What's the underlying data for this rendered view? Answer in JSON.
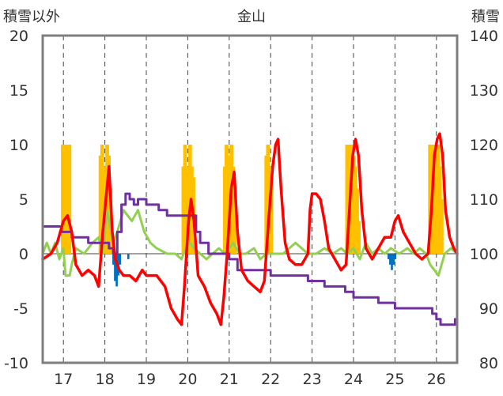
{
  "chart_data": {
    "type": "line",
    "title": "金山",
    "left_axis_label": "積雪以外",
    "right_axis_label": "積雪",
    "left_ylim": [
      -10,
      20
    ],
    "left_ticks": [
      20,
      15,
      10,
      5,
      0,
      -5,
      -10
    ],
    "right_ylim": [
      80,
      140
    ],
    "right_ticks": [
      140,
      130,
      120,
      110,
      100,
      90,
      80
    ],
    "xlim": [
      16.5,
      26.5
    ],
    "x_ticks": [
      17,
      18,
      19,
      20,
      21,
      22,
      23,
      24,
      25,
      26
    ],
    "x_tick_labels": [
      "17",
      "18",
      "19",
      "20",
      "21",
      "22",
      "23",
      "24",
      "25",
      "26"
    ],
    "grid": "vertical dashed at each day",
    "legend": "none",
    "colors": {
      "precipitation": "#ffc000",
      "snowfall": "#0070c0",
      "temperature": "#ff0000",
      "wind": "#92d050",
      "snow_depth": "#7030a0"
    },
    "series": [
      {
        "key": "precipitation",
        "axis": "left",
        "kind": "bar",
        "points": [
          [
            16.96,
            10
          ],
          [
            17.0,
            10
          ],
          [
            17.04,
            10
          ],
          [
            17.08,
            10
          ],
          [
            17.12,
            10
          ],
          [
            17.16,
            10
          ],
          [
            17.87,
            9
          ],
          [
            17.91,
            10
          ],
          [
            17.95,
            10
          ],
          [
            17.99,
            8
          ],
          [
            18.03,
            10
          ],
          [
            18.07,
            10
          ],
          [
            18.11,
            9
          ],
          [
            18.15,
            6
          ],
          [
            19.87,
            8
          ],
          [
            19.91,
            10
          ],
          [
            19.95,
            10
          ],
          [
            19.99,
            8
          ],
          [
            20.03,
            10
          ],
          [
            20.07,
            10
          ],
          [
            20.11,
            8
          ],
          [
            20.15,
            7
          ],
          [
            20.87,
            8
          ],
          [
            20.91,
            10
          ],
          [
            20.95,
            10
          ],
          [
            20.99,
            9
          ],
          [
            21.03,
            10
          ],
          [
            21.07,
            10
          ],
          [
            21.11,
            8
          ],
          [
            21.15,
            4
          ],
          [
            21.87,
            9
          ],
          [
            21.91,
            10
          ],
          [
            21.95,
            10
          ],
          [
            21.99,
            8
          ],
          [
            22.03,
            7
          ],
          [
            23.82,
            10
          ],
          [
            23.86,
            10
          ],
          [
            23.9,
            10
          ],
          [
            23.94,
            10
          ],
          [
            23.98,
            10
          ],
          [
            24.02,
            9
          ],
          [
            24.06,
            8
          ],
          [
            24.1,
            6
          ],
          [
            24.14,
            3
          ],
          [
            25.82,
            10
          ],
          [
            25.86,
            10
          ],
          [
            25.9,
            10
          ],
          [
            25.94,
            10
          ],
          [
            25.98,
            10
          ],
          [
            26.02,
            10
          ],
          [
            26.06,
            10
          ],
          [
            26.1,
            8
          ],
          [
            26.14,
            5
          ]
        ]
      },
      {
        "key": "snowfall",
        "axis": "left",
        "kind": "bar",
        "points": [
          [
            18.2,
            -1
          ],
          [
            18.24,
            -2.5
          ],
          [
            18.28,
            -3
          ],
          [
            18.32,
            -2
          ],
          [
            18.36,
            -1
          ],
          [
            18.56,
            -0.5
          ],
          [
            24.84,
            -0.5
          ],
          [
            24.88,
            -1
          ],
          [
            24.92,
            -1.5
          ],
          [
            24.96,
            -1
          ],
          [
            25.0,
            -0.5
          ]
        ]
      },
      {
        "key": "temperature",
        "axis": "left",
        "kind": "line",
        "points": [
          [
            16.5,
            -0.5
          ],
          [
            16.7,
            0
          ],
          [
            16.85,
            1
          ],
          [
            17.0,
            3
          ],
          [
            17.1,
            3.5
          ],
          [
            17.2,
            2
          ],
          [
            17.3,
            -1
          ],
          [
            17.45,
            -2
          ],
          [
            17.6,
            -1.5
          ],
          [
            17.75,
            -2
          ],
          [
            17.85,
            -3
          ],
          [
            17.95,
            2
          ],
          [
            18.05,
            6
          ],
          [
            18.1,
            8
          ],
          [
            18.18,
            2
          ],
          [
            18.25,
            -0.5
          ],
          [
            18.35,
            -1.5
          ],
          [
            18.45,
            -2
          ],
          [
            18.6,
            -2
          ],
          [
            18.75,
            -2.5
          ],
          [
            18.9,
            -1.5
          ],
          [
            19.0,
            -2
          ],
          [
            19.25,
            -2
          ],
          [
            19.45,
            -3
          ],
          [
            19.6,
            -5
          ],
          [
            19.75,
            -6
          ],
          [
            19.85,
            -6.5
          ],
          [
            19.92,
            -3
          ],
          [
            20.02,
            3
          ],
          [
            20.08,
            5
          ],
          [
            20.15,
            3
          ],
          [
            20.25,
            -2
          ],
          [
            20.4,
            -3
          ],
          [
            20.55,
            -4.5
          ],
          [
            20.7,
            -5.5
          ],
          [
            20.8,
            -6.5
          ],
          [
            20.87,
            -4
          ],
          [
            20.95,
            0
          ],
          [
            21.05,
            6
          ],
          [
            21.12,
            7.5
          ],
          [
            21.2,
            2
          ],
          [
            21.3,
            -1.5
          ],
          [
            21.45,
            -2.5
          ],
          [
            21.6,
            -3
          ],
          [
            21.75,
            -3.5
          ],
          [
            21.85,
            -2.5
          ],
          [
            21.95,
            3
          ],
          [
            22.05,
            8
          ],
          [
            22.12,
            10
          ],
          [
            22.18,
            10.5
          ],
          [
            22.25,
            6
          ],
          [
            22.35,
            1
          ],
          [
            22.45,
            -0.5
          ],
          [
            22.6,
            -1
          ],
          [
            22.75,
            -1
          ],
          [
            22.9,
            0
          ],
          [
            22.95,
            4
          ],
          [
            23.0,
            5.5
          ],
          [
            23.1,
            5.5
          ],
          [
            23.2,
            5
          ],
          [
            23.3,
            3
          ],
          [
            23.4,
            0.5
          ],
          [
            23.55,
            -0.5
          ],
          [
            23.7,
            -1.5
          ],
          [
            23.82,
            -1
          ],
          [
            23.9,
            4
          ],
          [
            23.98,
            9
          ],
          [
            24.05,
            10.5
          ],
          [
            24.12,
            9
          ],
          [
            24.2,
            4
          ],
          [
            24.3,
            0.5
          ],
          [
            24.45,
            -0.5
          ],
          [
            24.6,
            0.5
          ],
          [
            24.75,
            1.5
          ],
          [
            24.9,
            1.5
          ],
          [
            25.0,
            3
          ],
          [
            25.08,
            3.5
          ],
          [
            25.2,
            2
          ],
          [
            25.35,
            1
          ],
          [
            25.5,
            0
          ],
          [
            25.65,
            -0.5
          ],
          [
            25.8,
            0
          ],
          [
            25.88,
            4
          ],
          [
            25.95,
            9
          ],
          [
            26.02,
            10.5
          ],
          [
            26.08,
            11
          ],
          [
            26.15,
            9
          ],
          [
            26.22,
            4
          ],
          [
            26.32,
            1.5
          ],
          [
            26.42,
            0.5
          ],
          [
            26.5,
            0
          ]
        ]
      },
      {
        "key": "wind",
        "axis": "left",
        "kind": "line",
        "points": [
          [
            16.5,
            0
          ],
          [
            16.6,
            1
          ],
          [
            16.7,
            0
          ],
          [
            16.8,
            1
          ],
          [
            16.9,
            -0.5
          ],
          [
            17.0,
            0.5
          ],
          [
            17.05,
            -2
          ],
          [
            17.15,
            -2
          ],
          [
            17.2,
            -1
          ],
          [
            17.3,
            0.5
          ],
          [
            17.5,
            0
          ],
          [
            17.7,
            1
          ],
          [
            17.85,
            1.5
          ],
          [
            17.95,
            0
          ],
          [
            18.0,
            2
          ],
          [
            18.05,
            4
          ],
          [
            18.1,
            3
          ],
          [
            18.2,
            1
          ],
          [
            18.3,
            2
          ],
          [
            18.45,
            4
          ],
          [
            18.55,
            3.5
          ],
          [
            18.65,
            3
          ],
          [
            18.8,
            4
          ],
          [
            18.95,
            2
          ],
          [
            19.1,
            1
          ],
          [
            19.25,
            0.5
          ],
          [
            19.5,
            0
          ],
          [
            19.7,
            0
          ],
          [
            19.85,
            -0.5
          ],
          [
            19.95,
            0.5
          ],
          [
            20.05,
            1
          ],
          [
            20.15,
            0.5
          ],
          [
            20.3,
            0
          ],
          [
            20.45,
            -0.5
          ],
          [
            20.6,
            0
          ],
          [
            20.75,
            0.5
          ],
          [
            20.9,
            0
          ],
          [
            21.0,
            0.5
          ],
          [
            21.1,
            1
          ],
          [
            21.25,
            0
          ],
          [
            21.4,
            0
          ],
          [
            21.6,
            0.5
          ],
          [
            21.75,
            -0.5
          ],
          [
            21.9,
            0
          ],
          [
            22.1,
            0
          ],
          [
            22.3,
            0
          ],
          [
            22.45,
            0.5
          ],
          [
            22.6,
            1
          ],
          [
            22.75,
            0.5
          ],
          [
            22.9,
            0
          ],
          [
            23.1,
            0
          ],
          [
            23.3,
            0.5
          ],
          [
            23.5,
            0
          ],
          [
            23.7,
            0.5
          ],
          [
            23.85,
            0
          ],
          [
            24.0,
            0.5
          ],
          [
            24.15,
            -0.5
          ],
          [
            24.3,
            1
          ],
          [
            24.45,
            0
          ],
          [
            24.6,
            0.5
          ],
          [
            24.75,
            0
          ],
          [
            24.9,
            0.5
          ],
          [
            25.1,
            0
          ],
          [
            25.3,
            0.5
          ],
          [
            25.45,
            0
          ],
          [
            25.6,
            0.5
          ],
          [
            25.75,
            0
          ],
          [
            25.85,
            -1
          ],
          [
            25.95,
            -1.5
          ],
          [
            26.05,
            -2
          ],
          [
            26.2,
            0
          ],
          [
            26.35,
            0.5
          ],
          [
            26.5,
            0
          ]
        ]
      },
      {
        "key": "snow_depth",
        "axis": "right",
        "kind": "step",
        "points": [
          [
            16.5,
            105
          ],
          [
            16.9,
            105
          ],
          [
            16.95,
            104
          ],
          [
            17.2,
            103
          ],
          [
            17.5,
            103
          ],
          [
            17.6,
            102
          ],
          [
            18.0,
            102
          ],
          [
            18.1,
            101
          ],
          [
            18.2,
            100
          ],
          [
            18.3,
            104
          ],
          [
            18.4,
            109
          ],
          [
            18.5,
            111
          ],
          [
            18.6,
            110
          ],
          [
            18.7,
            109
          ],
          [
            18.8,
            110
          ],
          [
            19.0,
            109
          ],
          [
            19.3,
            108
          ],
          [
            19.5,
            107
          ],
          [
            19.9,
            107
          ],
          [
            20.1,
            107
          ],
          [
            20.2,
            104
          ],
          [
            20.3,
            102
          ],
          [
            20.5,
            100
          ],
          [
            20.8,
            100
          ],
          [
            21.0,
            99
          ],
          [
            21.2,
            97
          ],
          [
            21.5,
            97
          ],
          [
            21.8,
            97
          ],
          [
            22.0,
            96
          ],
          [
            22.4,
            96
          ],
          [
            22.8,
            96
          ],
          [
            22.9,
            95
          ],
          [
            23.2,
            95
          ],
          [
            23.3,
            94
          ],
          [
            23.6,
            94
          ],
          [
            23.8,
            93
          ],
          [
            24.0,
            92
          ],
          [
            24.4,
            92
          ],
          [
            24.6,
            91
          ],
          [
            24.8,
            91
          ],
          [
            25.0,
            90
          ],
          [
            25.4,
            90
          ],
          [
            25.8,
            90
          ],
          [
            25.9,
            89
          ],
          [
            26.0,
            88
          ],
          [
            26.1,
            87
          ],
          [
            26.3,
            87
          ],
          [
            26.45,
            88
          ]
        ]
      }
    ]
  }
}
